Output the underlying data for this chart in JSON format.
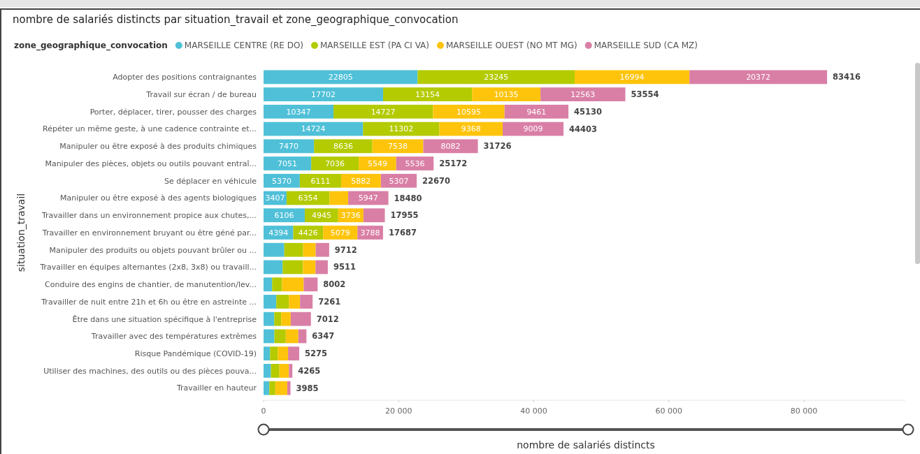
{
  "chart_data": {
    "type": "bar",
    "orientation": "horizontal",
    "stacked": true,
    "title": "nombre de salariés distincts par situation_travail et zone_geographique_convocation",
    "legend_title": "zone_geographique_convocation",
    "legend": "top left",
    "xlabel": "nombre de salariés distincts",
    "ylabel": "situation_travail",
    "grid": false,
    "categories": [
      "Adopter des positions contraignantes",
      "Travail sur écran / de bureau",
      "Porter, déplacer, tirer, pousser des charges",
      "Répéter un même geste, à une cadence contrainte et...",
      "Manipuler ou être exposé à des produits chimiques",
      "Manipuler des pièces, objets ou outils pouvant entraî...",
      "Se déplacer en véhicule",
      "Manipuler ou être exposé à des agents biologiques",
      "Travailler dans un environnement propice aux chutes,...",
      "Travailler en environnement bruyant ou être géné par...",
      "Manipuler des produits ou objets pouvant brûler ou ...",
      "Travailler en équipes alternantes (2x8, 3x8) ou travaill...",
      "Conduire des engins de chantier, de manutention/lev...",
      "Travailler de nuit entre 21h et 6h ou être en astreinte ...",
      "Être dans une situation spécifique à l'entreprise",
      "Travailler avec des températures extrêmes",
      "Risque Pandémique (COVID-19)",
      "Utiliser des machines, des outils ou des pièces pouva...",
      "Travailler en hauteur"
    ],
    "xlim": [
      0,
      95000
    ],
    "xticks": [
      0,
      {
        "value": 20000,
        "label": "20 000"
      },
      {
        "value": 40000,
        "label": "40 000"
      },
      {
        "value": 60000,
        "label": "60 000"
      },
      {
        "value": 80000,
        "label": "80 000"
      }
    ],
    "series": [
      {
        "name": "MARSEILLE CENTRE (RE DO)",
        "color": "#4fc0d8",
        "values": [
          22805,
          17702,
          10347,
          14724,
          7470,
          7051,
          5370,
          3407,
          6106,
          4394,
          3070,
          2820,
          1270,
          1890,
          1580,
          1610,
          960,
          1090,
          850
        ],
        "value_labels": [
          "22805",
          "17702",
          "10347",
          "14724",
          "7470",
          "7051",
          "5370",
          "3407",
          "6106",
          "4394",
          null,
          null,
          null,
          null,
          null,
          null,
          null,
          null,
          null
        ]
      },
      {
        "name": "MARSEILLE EST (PA CI VA)",
        "color": "#b3cb00",
        "values": [
          23245,
          13154,
          14727,
          11302,
          8636,
          7036,
          6111,
          6354,
          4945,
          4426,
          2790,
          3020,
          1470,
          1860,
          1030,
          1680,
          1130,
          1260,
          890
        ],
        "value_labels": [
          "23245",
          "13154",
          "14727",
          "11302",
          "8636",
          "7036",
          "6111",
          "6354",
          "4945",
          "4426",
          null,
          null,
          null,
          null,
          null,
          null,
          null,
          null,
          null
        ]
      },
      {
        "name": "MARSEILLE OUEST (NO MT MG)",
        "color": "#fec40c",
        "values": [
          16994,
          10135,
          10595,
          9368,
          7538,
          5549,
          5882,
          2772,
          3736,
          5079,
          1860,
          1850,
          3200,
          1650,
          1410,
          1855,
          1540,
          1400,
          1770
        ],
        "value_labels": [
          "16994",
          "10135",
          "10595",
          "9368",
          "7538",
          "5549",
          "5882",
          null,
          "3736",
          "5079",
          null,
          null,
          null,
          null,
          null,
          null,
          null,
          null,
          null
        ]
      },
      {
        "name": "MARSEILLE SUD (CA MZ)",
        "color": "#d97fa6",
        "values": [
          20372,
          12563,
          9461,
          9009,
          8082,
          5536,
          5307,
          5947,
          3168,
          3788,
          1992,
          1821,
          2062,
          1861,
          2992,
          1202,
          1645,
          515,
          475
        ],
        "value_labels": [
          "20372",
          "12563",
          "9461",
          "9009",
          "8082",
          "5536",
          "5307",
          "5947",
          null,
          "3788",
          null,
          null,
          null,
          null,
          null,
          null,
          null,
          null,
          null
        ]
      }
    ],
    "totals": [
      "83416",
      "53554",
      "45130",
      "44403",
      "31726",
      "25172",
      "22670",
      "18480",
      "17955",
      "17687",
      "9712",
      "9511",
      "8002",
      "7261",
      "7012",
      "6347",
      "5275",
      "4265",
      "3985"
    ]
  }
}
